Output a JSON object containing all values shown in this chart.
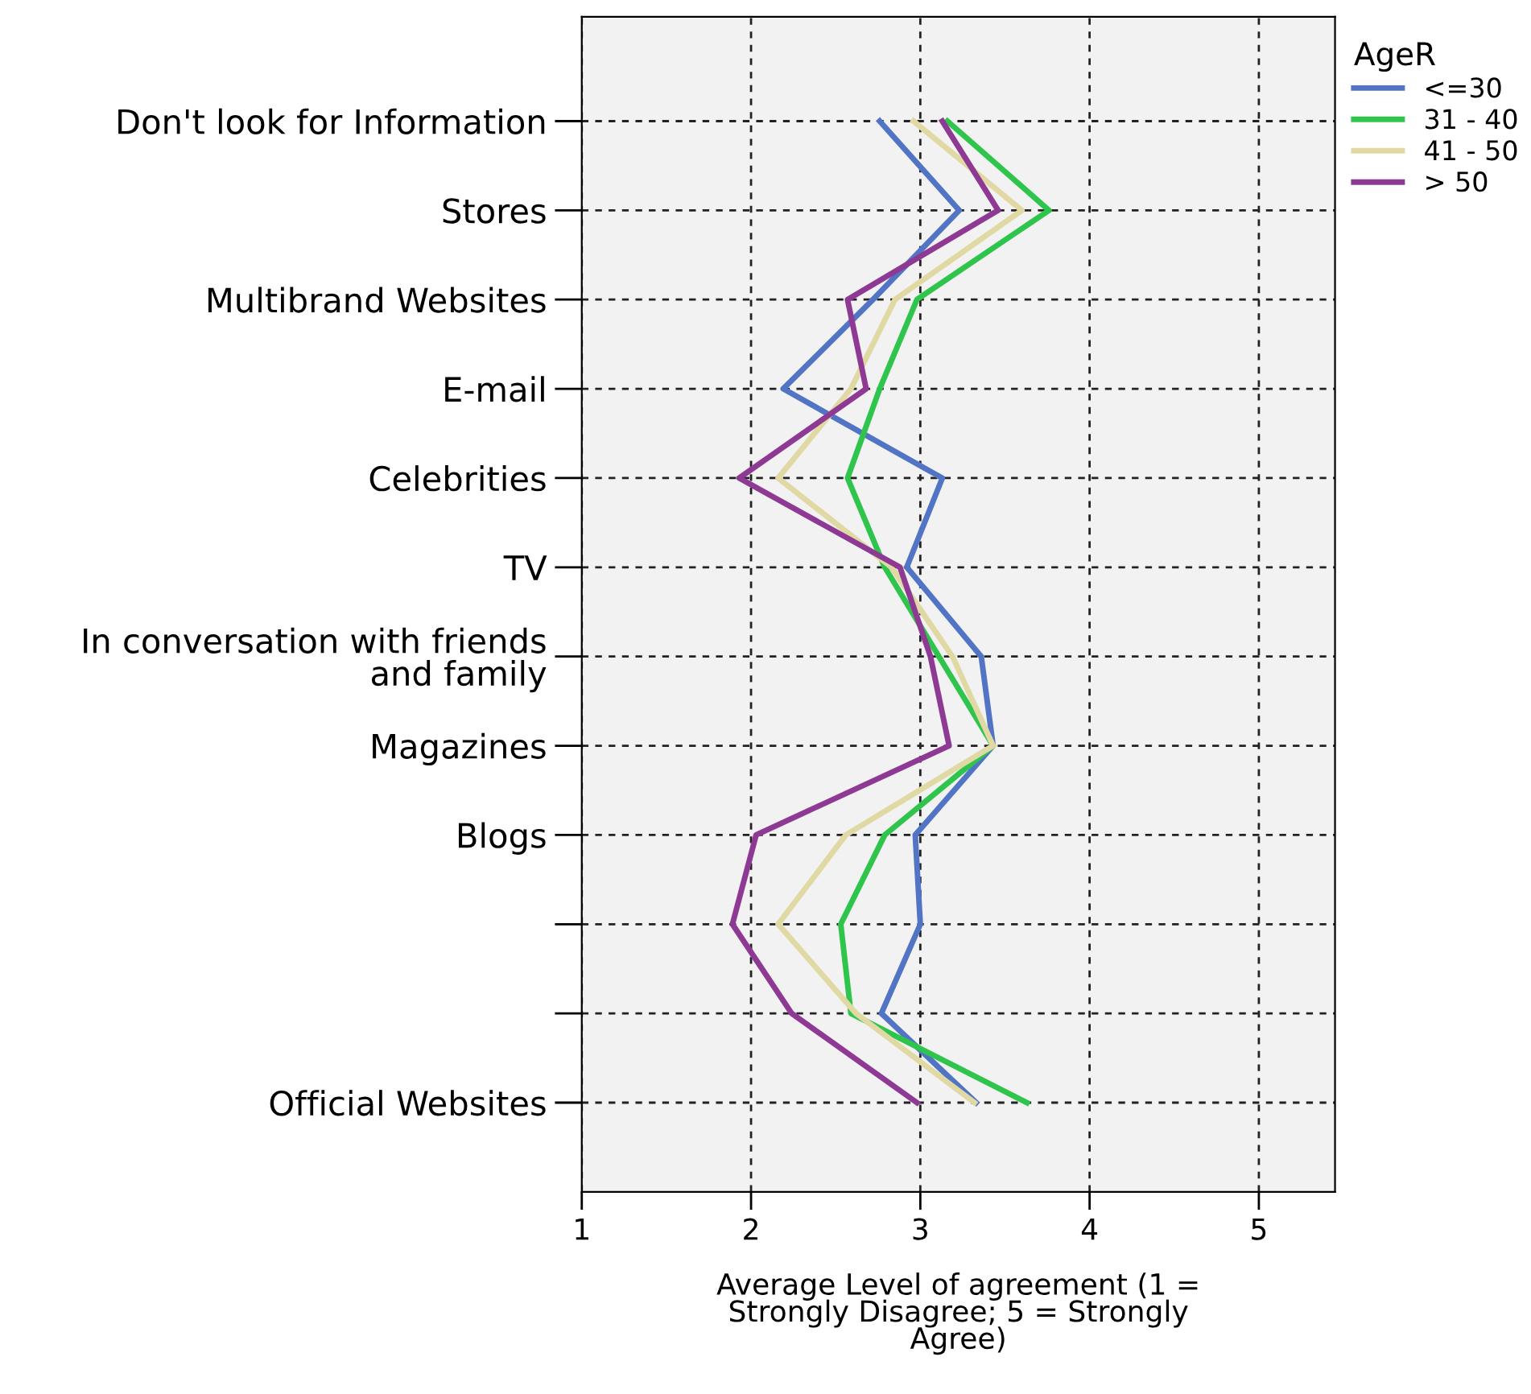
{
  "chart_data": {
    "type": "line",
    "orientation": "horizontal",
    "categories": [
      "Don't look for Information",
      "Stores",
      "Multibrand Websites",
      "E-mail",
      "Celebrities",
      "TV",
      "In conversation with friends\nand family",
      "Magazines",
      "Blogs",
      null,
      null,
      "Official Websites"
    ],
    "series": [
      {
        "name": "<=30",
        "color": "#5274c4",
        "values": [
          2.76,
          3.23,
          2.72,
          2.19,
          3.13,
          2.92,
          3.36,
          3.43,
          2.97,
          3.0,
          2.77,
          3.33
        ]
      },
      {
        "name": "31 - 40",
        "color": "#2fc44c",
        "values": [
          3.16,
          3.76,
          2.98,
          2.76,
          2.57,
          2.79,
          3.11,
          3.43,
          2.79,
          2.53,
          2.59,
          3.63
        ]
      },
      {
        "name": "41 - 50",
        "color": "#e0d9a4",
        "values": [
          2.96,
          3.6,
          2.85,
          2.59,
          2.16,
          2.83,
          3.19,
          3.43,
          2.56,
          2.16,
          2.62,
          3.32
        ]
      },
      {
        "name": "> 50",
        "color": "#8e3a94",
        "values": [
          3.13,
          3.46,
          2.57,
          2.68,
          1.93,
          2.88,
          3.06,
          3.17,
          2.03,
          1.89,
          2.24,
          2.98
        ]
      }
    ],
    "xlabel": "Average Level of agreement (1 =\nStrongly Disagree; 5 = Strongly\nAgree)",
    "legend_title": "AgeR",
    "xlim": [
      1,
      5.45
    ],
    "xticks": [
      1,
      2,
      3,
      4,
      5
    ],
    "grid": true,
    "legend": "top right"
  }
}
